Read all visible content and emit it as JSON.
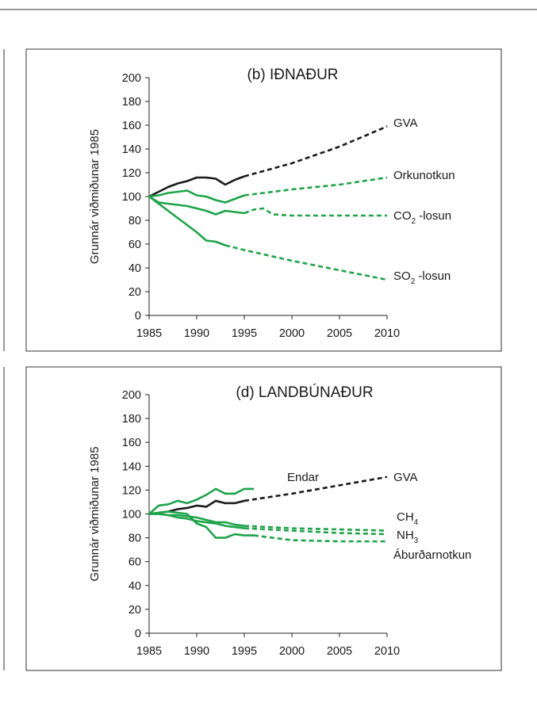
{
  "colors": {
    "black_series": "#1a1a1a",
    "green_series": "#1fa34a",
    "frame": "#333333"
  },
  "chart_data": [
    {
      "type": "line",
      "title": "(b)  IÐNAÐUR",
      "ylabel": "Grunnár viðmiðunar 1985",
      "xlabel": "",
      "xlim": [
        1985,
        2010
      ],
      "ylim": [
        0,
        200
      ],
      "xticks": [
        "1985",
        "1990",
        "1995",
        "2000",
        "2005",
        "2010"
      ],
      "yticks": [
        "0",
        "20",
        "40",
        "60",
        "80",
        "100",
        "120",
        "140",
        "160",
        "180",
        "200"
      ],
      "grid": false,
      "series": [
        {
          "name": "GVA",
          "color": "black",
          "observed": [
            [
              1985,
              100
            ],
            [
              1986,
              104
            ],
            [
              1987,
              108
            ],
            [
              1988,
              111
            ],
            [
              1989,
              113
            ],
            [
              1990,
              116
            ],
            [
              1991,
              116
            ],
            [
              1992,
              115
            ],
            [
              1993,
              110
            ],
            [
              1994,
              114
            ],
            [
              1995,
              117
            ]
          ],
          "projected": [
            [
              1995,
              117
            ],
            [
              2000,
              128
            ],
            [
              2005,
              142
            ],
            [
              2010,
              159
            ]
          ]
        },
        {
          "name": "Orkunotkun",
          "color": "green",
          "observed": [
            [
              1985,
              100
            ],
            [
              1986,
              101
            ],
            [
              1987,
              103
            ],
            [
              1988,
              104
            ],
            [
              1989,
              105
            ],
            [
              1990,
              101
            ],
            [
              1991,
              100
            ],
            [
              1992,
              97
            ],
            [
              1993,
              95
            ],
            [
              1994,
              98
            ],
            [
              1995,
              101
            ]
          ],
          "projected": [
            [
              1995,
              101
            ],
            [
              1997,
              103
            ],
            [
              2000,
              106
            ],
            [
              2005,
              110
            ],
            [
              2010,
              116
            ]
          ]
        },
        {
          "name": "CO",
          "subscript": "2",
          "suffix": " -losun",
          "color": "green",
          "observed": [
            [
              1985,
              100
            ],
            [
              1986,
              95
            ],
            [
              1987,
              94
            ],
            [
              1988,
              93
            ],
            [
              1989,
              92
            ],
            [
              1990,
              90
            ],
            [
              1991,
              88
            ],
            [
              1992,
              85
            ],
            [
              1993,
              88
            ],
            [
              1994,
              87
            ],
            [
              1995,
              86
            ]
          ],
          "projected": [
            [
              1995,
              86
            ],
            [
              1996,
              89
            ],
            [
              1997,
              90
            ],
            [
              1998,
              85
            ],
            [
              2000,
              84
            ],
            [
              2005,
              84
            ],
            [
              2010,
              84
            ]
          ]
        },
        {
          "name": "SO",
          "subscript": "2",
          "suffix": " -losun",
          "color": "green",
          "observed": [
            [
              1985,
              100
            ],
            [
              1986,
              94
            ],
            [
              1987,
              88
            ],
            [
              1988,
              82
            ],
            [
              1989,
              76
            ],
            [
              1990,
              70
            ],
            [
              1991,
              63
            ],
            [
              1992,
              62
            ],
            [
              1993,
              59
            ]
          ],
          "projected": [
            [
              1993,
              59
            ],
            [
              1995,
              55
            ],
            [
              2000,
              46
            ],
            [
              2005,
              38
            ],
            [
              2010,
              30
            ]
          ]
        }
      ]
    },
    {
      "type": "line",
      "title": "(d)  LANDBÚNAÐUR",
      "ylabel": "Grunnár viðmiðunar 1985",
      "xlabel": "",
      "xlim": [
        1985,
        2010
      ],
      "ylim": [
        0,
        200
      ],
      "xticks": [
        "1985",
        "1990",
        "1995",
        "2000",
        "2005",
        "2010"
      ],
      "yticks": [
        "0",
        "20",
        "40",
        "60",
        "80",
        "100",
        "120",
        "140",
        "160",
        "180",
        "200"
      ],
      "grid": false,
      "series": [
        {
          "name": "GVA",
          "color": "black",
          "observed": [
            [
              1985,
              100
            ],
            [
              1986,
              101
            ],
            [
              1987,
              102
            ],
            [
              1988,
              104
            ],
            [
              1989,
              105
            ],
            [
              1990,
              107
            ],
            [
              1991,
              106
            ],
            [
              1992,
              111
            ],
            [
              1993,
              109
            ],
            [
              1994,
              109
            ],
            [
              1995,
              111
            ]
          ],
          "projected": [
            [
              1995,
              111
            ],
            [
              2000,
              117
            ],
            [
              2005,
              124
            ],
            [
              2010,
              131
            ]
          ]
        },
        {
          "name": "Endar",
          "color": "green",
          "observed": [
            [
              1985,
              100
            ],
            [
              1986,
              107
            ],
            [
              1987,
              108
            ],
            [
              1988,
              111
            ],
            [
              1989,
              109
            ],
            [
              1990,
              112
            ],
            [
              1991,
              116
            ],
            [
              1992,
              121
            ],
            [
              1993,
              117
            ],
            [
              1994,
              117
            ],
            [
              1995,
              121
            ],
            [
              1996,
              121
            ]
          ],
          "projected": []
        },
        {
          "name": "CH",
          "subscript": "4",
          "suffix": "",
          "color": "green",
          "observed": [
            [
              1985,
              100
            ],
            [
              1986,
              100
            ],
            [
              1987,
              99
            ],
            [
              1988,
              99
            ],
            [
              1989,
              98
            ],
            [
              1990,
              97
            ],
            [
              1991,
              95
            ],
            [
              1992,
              93
            ],
            [
              1993,
              93
            ],
            [
              1994,
              91
            ],
            [
              1995,
              90
            ]
          ],
          "projected": [
            [
              1995,
              90
            ],
            [
              2000,
              88
            ],
            [
              2005,
              87
            ],
            [
              2010,
              86
            ]
          ]
        },
        {
          "name": "NH",
          "subscript": "3",
          "suffix": "",
          "color": "green",
          "observed": [
            [
              1985,
              100
            ],
            [
              1986,
              100
            ],
            [
              1987,
              99
            ],
            [
              1988,
              97
            ],
            [
              1989,
              96
            ],
            [
              1990,
              94
            ],
            [
              1991,
              93
            ],
            [
              1992,
              92
            ],
            [
              1993,
              90
            ],
            [
              1994,
              89
            ],
            [
              1995,
              88
            ]
          ],
          "projected": [
            [
              1995,
              88
            ],
            [
              2000,
              86
            ],
            [
              2005,
              84
            ],
            [
              2010,
              83
            ]
          ]
        },
        {
          "name": "Áburðarnotkun",
          "color": "green",
          "observed": [
            [
              1985,
              100
            ],
            [
              1986,
              101
            ],
            [
              1987,
              102
            ],
            [
              1988,
              101
            ],
            [
              1989,
              100
            ],
            [
              1990,
              92
            ],
            [
              1991,
              89
            ],
            [
              1992,
              80
            ],
            [
              1993,
              80
            ],
            [
              1994,
              83
            ],
            [
              1995,
              82
            ],
            [
              1996,
              82
            ]
          ],
          "projected": [
            [
              1996,
              82
            ],
            [
              2000,
              78
            ],
            [
              2005,
              77
            ],
            [
              2010,
              77
            ]
          ]
        }
      ]
    }
  ]
}
